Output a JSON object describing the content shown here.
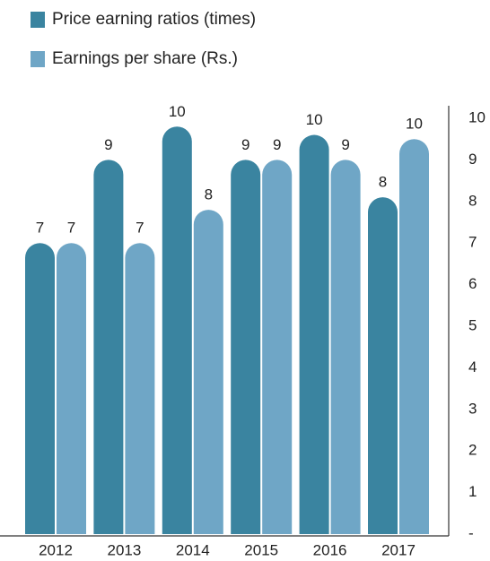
{
  "chart_data": {
    "type": "bar",
    "categories": [
      "2012",
      "2013",
      "2014",
      "2015",
      "2016",
      "2017"
    ],
    "series": [
      {
        "name": "Price earning ratios (times)",
        "color": "#3a84a0",
        "values": [
          7,
          9,
          9.8,
          9,
          9.6,
          8.1
        ],
        "value_labels": [
          "7",
          "9",
          "10",
          "9",
          "10",
          "8"
        ]
      },
      {
        "name": "Earnings per share (Rs.)",
        "color": "#6fa6c6",
        "values": [
          7,
          7,
          7.8,
          9,
          9,
          9.5
        ],
        "value_labels": [
          "7",
          "7",
          "8",
          "9",
          "9",
          "10"
        ]
      }
    ],
    "ylim": [
      0,
      10
    ],
    "yticks": [
      {
        "value": 0,
        "label": "-"
      },
      1,
      2,
      3,
      4,
      5,
      6,
      7,
      8,
      9,
      10
    ],
    "legend": "top-left"
  }
}
